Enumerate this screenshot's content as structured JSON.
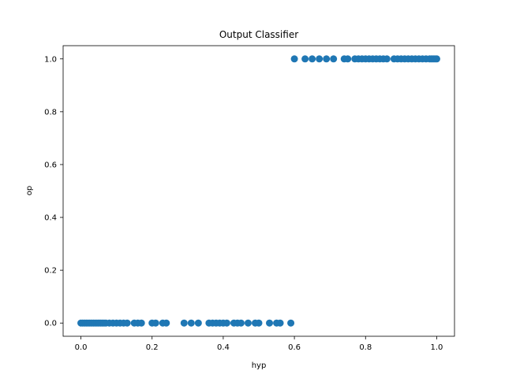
{
  "chart_data": {
    "type": "scatter",
    "title": "Output Classifier",
    "xlabel": "hyp",
    "ylabel": "op",
    "xlim": [
      -0.05,
      1.05
    ],
    "ylim": [
      -0.05,
      1.05
    ],
    "xticks": [
      "0.0",
      "0.2",
      "0.4",
      "0.6",
      "0.8",
      "1.0"
    ],
    "yticks": [
      "0.0",
      "0.2",
      "0.4",
      "0.6",
      "0.8",
      "1.0"
    ],
    "grid": false,
    "marker_color": "#1f77b4",
    "series": [
      {
        "x": [
          0.0,
          0.005,
          0.01,
          0.015,
          0.02,
          0.025,
          0.03,
          0.035,
          0.04,
          0.045,
          0.05,
          0.055,
          0.06,
          0.065,
          0.07,
          0.08,
          0.09,
          0.1,
          0.11,
          0.12,
          0.13,
          0.15,
          0.16,
          0.17,
          0.2,
          0.21,
          0.23,
          0.24,
          0.29,
          0.31,
          0.33,
          0.36,
          0.37,
          0.38,
          0.39,
          0.4,
          0.41,
          0.43,
          0.44,
          0.45,
          0.47,
          0.49,
          0.5,
          0.53,
          0.55,
          0.56,
          0.59
        ],
        "y": [
          0,
          0,
          0,
          0,
          0,
          0,
          0,
          0,
          0,
          0,
          0,
          0,
          0,
          0,
          0,
          0,
          0,
          0,
          0,
          0,
          0,
          0,
          0,
          0,
          0,
          0,
          0,
          0,
          0,
          0,
          0,
          0,
          0,
          0,
          0,
          0,
          0,
          0,
          0,
          0,
          0,
          0,
          0,
          0,
          0,
          0,
          0
        ]
      },
      {
        "x": [
          0.6,
          0.63,
          0.65,
          0.67,
          0.69,
          0.71,
          0.74,
          0.75,
          0.77,
          0.78,
          0.79,
          0.8,
          0.81,
          0.82,
          0.83,
          0.84,
          0.85,
          0.86,
          0.88,
          0.89,
          0.9,
          0.91,
          0.92,
          0.93,
          0.94,
          0.95,
          0.96,
          0.97,
          0.98,
          0.985,
          0.99,
          0.995,
          1.0
        ],
        "y": [
          1,
          1,
          1,
          1,
          1,
          1,
          1,
          1,
          1,
          1,
          1,
          1,
          1,
          1,
          1,
          1,
          1,
          1,
          1,
          1,
          1,
          1,
          1,
          1,
          1,
          1,
          1,
          1,
          1,
          1,
          1,
          1,
          1
        ]
      }
    ]
  }
}
